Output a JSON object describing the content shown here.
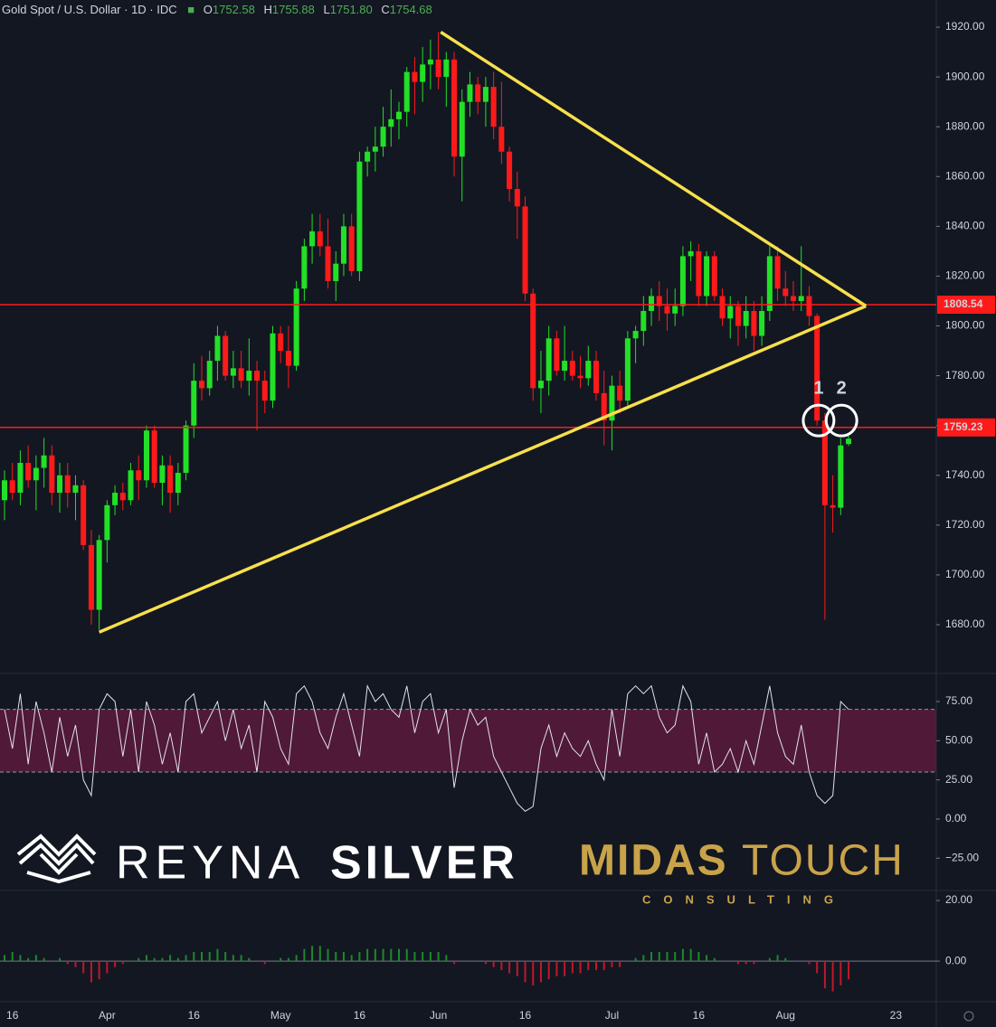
{
  "header": {
    "symbol": "Gold Spot / U.S. Dollar",
    "interval": "1D",
    "source": "IDC",
    "ohlc": [
      {
        "label": "O",
        "value": "1752.58"
      },
      {
        "label": "H",
        "value": "1755.88"
      },
      {
        "label": "L",
        "value": "1751.80"
      },
      {
        "label": "C",
        "value": "1754.68"
      }
    ]
  },
  "watermark": {
    "brand_light": "REYNA",
    "brand_bold": "SILVER",
    "partner_bold": "MIDAS",
    "partner_light": "TOUCH",
    "partner_sub": "CONSULTING"
  },
  "chart_data": [
    {
      "type": "candlestick",
      "categories": [
        null,
        "16",
        null,
        null,
        null,
        null,
        null,
        null,
        null,
        null,
        null,
        null,
        null,
        "Apr",
        null,
        null,
        null,
        null,
        null,
        null,
        null,
        null,
        null,
        null,
        "16",
        null,
        null,
        null,
        null,
        null,
        null,
        null,
        null,
        null,
        null,
        "May",
        null,
        null,
        null,
        null,
        null,
        null,
        null,
        null,
        null,
        "16",
        null,
        null,
        null,
        null,
        null,
        null,
        null,
        null,
        null,
        "Jun",
        null,
        null,
        null,
        null,
        null,
        null,
        null,
        null,
        null,
        null,
        "16",
        null,
        null,
        null,
        null,
        null,
        null,
        null,
        null,
        null,
        null,
        "Jul",
        null,
        null,
        null,
        null,
        null,
        null,
        null,
        null,
        null,
        null,
        "16",
        null,
        null,
        null,
        null,
        null,
        null,
        null,
        null,
        null,
        null,
        "Aug",
        null,
        null,
        null,
        null,
        null,
        null,
        null,
        null,
        null,
        null,
        null,
        null,
        null,
        "23",
        null,
        null,
        null,
        null
      ],
      "ohlc": [
        [
          1730,
          1742,
          1722,
          1738
        ],
        [
          1738,
          1745,
          1730,
          1733
        ],
        [
          1733,
          1750,
          1728,
          1745
        ],
        [
          1745,
          1752,
          1735,
          1738
        ],
        [
          1738,
          1748,
          1726,
          1743
        ],
        [
          1743,
          1755,
          1735,
          1748
        ],
        [
          1748,
          1752,
          1728,
          1733
        ],
        [
          1733,
          1745,
          1725,
          1740
        ],
        [
          1740,
          1745,
          1727,
          1733
        ],
        [
          1733,
          1740,
          1722,
          1736
        ],
        [
          1736,
          1738,
          1710,
          1712
        ],
        [
          1712,
          1718,
          1680,
          1686
        ],
        [
          1686,
          1716,
          1678,
          1714
        ],
        [
          1714,
          1730,
          1705,
          1728
        ],
        [
          1728,
          1736,
          1724,
          1733
        ],
        [
          1733,
          1737,
          1726,
          1730
        ],
        [
          1730,
          1745,
          1728,
          1742
        ],
        [
          1742,
          1748,
          1730,
          1738
        ],
        [
          1738,
          1760,
          1735,
          1758
        ],
        [
          1758,
          1760,
          1735,
          1737
        ],
        [
          1737,
          1748,
          1728,
          1744
        ],
        [
          1744,
          1748,
          1725,
          1733
        ],
        [
          1733,
          1745,
          1728,
          1741
        ],
        [
          1741,
          1762,
          1738,
          1760
        ],
        [
          1760,
          1785,
          1755,
          1778
        ],
        [
          1778,
          1788,
          1770,
          1775
        ],
        [
          1775,
          1790,
          1772,
          1786
        ],
        [
          1786,
          1800,
          1778,
          1796
        ],
        [
          1796,
          1798,
          1778,
          1780
        ],
        [
          1780,
          1790,
          1775,
          1783
        ],
        [
          1783,
          1790,
          1775,
          1778
        ],
        [
          1778,
          1795,
          1772,
          1782
        ],
        [
          1782,
          1786,
          1758,
          1778
        ],
        [
          1778,
          1782,
          1765,
          1770
        ],
        [
          1770,
          1800,
          1767,
          1797
        ],
        [
          1797,
          1800,
          1785,
          1790
        ],
        [
          1790,
          1800,
          1775,
          1784
        ],
        [
          1784,
          1818,
          1782,
          1815
        ],
        [
          1815,
          1835,
          1810,
          1832
        ],
        [
          1832,
          1845,
          1825,
          1838
        ],
        [
          1838,
          1845,
          1828,
          1832
        ],
        [
          1832,
          1843,
          1815,
          1818
        ],
        [
          1818,
          1830,
          1810,
          1825
        ],
        [
          1825,
          1845,
          1820,
          1840
        ],
        [
          1840,
          1845,
          1820,
          1822
        ],
        [
          1822,
          1870,
          1818,
          1866
        ],
        [
          1866,
          1872,
          1860,
          1870
        ],
        [
          1870,
          1880,
          1862,
          1872
        ],
        [
          1872,
          1888,
          1868,
          1880
        ],
        [
          1880,
          1895,
          1872,
          1883
        ],
        [
          1883,
          1890,
          1875,
          1886
        ],
        [
          1886,
          1904,
          1880,
          1902
        ],
        [
          1902,
          1908,
          1885,
          1898
        ],
        [
          1898,
          1912,
          1890,
          1905
        ],
        [
          1905,
          1915,
          1895,
          1907
        ],
        [
          1907,
          1918,
          1895,
          1900
        ],
        [
          1900,
          1910,
          1888,
          1907
        ],
        [
          1907,
          1910,
          1860,
          1868
        ],
        [
          1868,
          1895,
          1850,
          1890
        ],
        [
          1890,
          1902,
          1884,
          1897
        ],
        [
          1897,
          1900,
          1885,
          1890
        ],
        [
          1890,
          1900,
          1880,
          1896
        ],
        [
          1896,
          1902,
          1875,
          1880
        ],
        [
          1880,
          1898,
          1865,
          1870
        ],
        [
          1870,
          1872,
          1850,
          1855
        ],
        [
          1855,
          1862,
          1835,
          1848
        ],
        [
          1848,
          1852,
          1810,
          1813
        ],
        [
          1813,
          1815,
          1770,
          1775
        ],
        [
          1775,
          1790,
          1765,
          1778
        ],
        [
          1778,
          1800,
          1772,
          1795
        ],
        [
          1795,
          1798,
          1780,
          1782
        ],
        [
          1782,
          1800,
          1778,
          1786
        ],
        [
          1786,
          1790,
          1778,
          1780
        ],
        [
          1780,
          1788,
          1775,
          1779
        ],
        [
          1779,
          1792,
          1776,
          1786
        ],
        [
          1786,
          1790,
          1770,
          1773
        ],
        [
          1773,
          1782,
          1752,
          1762
        ],
        [
          1762,
          1780,
          1750,
          1776
        ],
        [
          1776,
          1782,
          1765,
          1770
        ],
        [
          1770,
          1798,
          1768,
          1795
        ],
        [
          1795,
          1800,
          1785,
          1798
        ],
        [
          1798,
          1812,
          1792,
          1806
        ],
        [
          1806,
          1815,
          1800,
          1812
        ],
        [
          1812,
          1818,
          1802,
          1808
        ],
        [
          1808,
          1815,
          1798,
          1805
        ],
        [
          1805,
          1815,
          1800,
          1808
        ],
        [
          1808,
          1832,
          1804,
          1828
        ],
        [
          1828,
          1834,
          1818,
          1830
        ],
        [
          1830,
          1833,
          1808,
          1812
        ],
        [
          1812,
          1830,
          1808,
          1828
        ],
        [
          1828,
          1830,
          1810,
          1812
        ],
        [
          1812,
          1815,
          1800,
          1803
        ],
        [
          1803,
          1812,
          1795,
          1808
        ],
        [
          1808,
          1810,
          1792,
          1800
        ],
        [
          1800,
          1812,
          1795,
          1806
        ],
        [
          1806,
          1810,
          1790,
          1796
        ],
        [
          1796,
          1812,
          1792,
          1806
        ],
        [
          1806,
          1832,
          1802,
          1828
        ],
        [
          1828,
          1832,
          1810,
          1815
        ],
        [
          1815,
          1822,
          1808,
          1812
        ],
        [
          1812,
          1818,
          1806,
          1810
        ],
        [
          1810,
          1832,
          1806,
          1812
        ],
        [
          1812,
          1816,
          1800,
          1804
        ],
        [
          1804,
          1805,
          1760,
          1762
        ],
        [
          1762,
          1765,
          1682,
          1728
        ],
        [
          1728,
          1740,
          1717,
          1727
        ],
        [
          1727,
          1755,
          1724,
          1752
        ],
        [
          1752.58,
          1755.88,
          1751.8,
          1754.68
        ],
        null,
        null,
        null,
        null,
        null,
        null,
        null,
        null,
        null,
        null
      ],
      "up_color": "#22e026",
      "down_color": "#ff1a1a",
      "ylim": [
        1660.4,
        1930.9
      ],
      "yticks": [
        {
          "value": 1680,
          "label": "1680.00"
        },
        {
          "value": 1700,
          "label": "1700.00"
        },
        {
          "value": 1720,
          "label": "1720.00"
        },
        {
          "value": 1740,
          "label": "1740.00"
        },
        {
          "value": 1760,
          "label": "1760.00"
        },
        {
          "value": 1780,
          "label": "1780.00"
        },
        {
          "value": 1800,
          "label": "1800.00"
        },
        {
          "value": 1820,
          "label": "1820.00"
        },
        {
          "value": 1840,
          "label": "1840.00"
        },
        {
          "value": 1860,
          "label": "1860.00"
        },
        {
          "value": 1880,
          "label": "1880.00"
        },
        {
          "value": 1900,
          "label": "1900.00"
        },
        {
          "value": 1920,
          "label": "1920.00"
        }
      ],
      "levels": [
        1808.54,
        1759.23
      ],
      "level_color": "#ff1a1a",
      "trendlines": [
        [
          [
            55.3,
            1918
          ],
          [
            109.2,
            1808
          ]
        ],
        [
          [
            12,
            1677
          ],
          [
            109.2,
            1808
          ]
        ]
      ],
      "trendline_color": "#f7e04b",
      "markers": [
        {
          "label": "1",
          "x": 103.2,
          "y": 1762
        },
        {
          "label": "2",
          "x": 106.1,
          "y": 1762
        }
      ]
    },
    {
      "type": "line",
      "color": "#e0e3eb",
      "values": [
        70,
        45,
        80,
        35,
        75,
        55,
        30,
        65,
        40,
        60,
        25,
        15,
        70,
        80,
        75,
        40,
        70,
        30,
        75,
        60,
        35,
        55,
        30,
        75,
        80,
        55,
        65,
        75,
        50,
        70,
        45,
        60,
        30,
        75,
        65,
        45,
        35,
        80,
        85,
        75,
        55,
        45,
        65,
        80,
        60,
        40,
        85,
        75,
        80,
        70,
        65,
        85,
        55,
        75,
        80,
        55,
        70,
        20,
        50,
        70,
        60,
        65,
        40,
        30,
        20,
        10,
        5,
        8,
        45,
        60,
        40,
        55,
        45,
        40,
        50,
        35,
        25,
        70,
        40,
        80,
        85,
        80,
        85,
        65,
        55,
        60,
        85,
        75,
        35,
        55,
        30,
        35,
        45,
        30,
        50,
        35,
        60,
        85,
        55,
        40,
        35,
        60,
        30,
        15,
        10,
        15,
        75,
        70
      ],
      "ylim": [
        -45.6,
        92.9
      ],
      "yticks": [
        {
          "value": 75,
          "label": "75.00"
        },
        {
          "value": 50,
          "label": "50.00"
        },
        {
          "value": 25,
          "label": "25.00"
        },
        {
          "value": 0,
          "label": "0.00"
        },
        {
          "value": -25,
          "label": "−25.00"
        }
      ],
      "band": [
        30,
        70
      ],
      "band_color": "#5c1a3c"
    },
    {
      "type": "histogram",
      "up_color": "#1b8a2a",
      "down_color": "#c0182a",
      "values": [
        2,
        3,
        2,
        1,
        2,
        1,
        0,
        1,
        -1,
        -2,
        -4,
        -7,
        -6,
        -4,
        -2,
        -1,
        0,
        1,
        2,
        1,
        1,
        2,
        1,
        2,
        3,
        3,
        3,
        4,
        3,
        2,
        2,
        1,
        0,
        -1,
        0,
        1,
        1,
        2,
        4,
        5,
        5,
        4,
        3,
        3,
        2,
        3,
        4,
        4,
        4,
        4,
        4,
        4,
        3,
        3,
        3,
        3,
        2,
        -1,
        0,
        0,
        0,
        -1,
        -2,
        -3,
        -4,
        -5,
        -7,
        -8,
        -7,
        -6,
        -5,
        -5,
        -4,
        -4,
        -3,
        -3,
        -3,
        -2,
        -2,
        0,
        1,
        2,
        3,
        3,
        3,
        3,
        4,
        4,
        3,
        2,
        1,
        0,
        0,
        -1,
        -1,
        -1,
        0,
        1,
        2,
        1,
        0,
        0,
        -1,
        -4,
        -9,
        -10,
        -8,
        -6
      ],
      "ylim": [
        -13.4,
        23.3
      ],
      "yticks": [
        {
          "value": 20,
          "label": "20.00"
        },
        {
          "value": 0,
          "label": "0.00"
        }
      ]
    }
  ]
}
